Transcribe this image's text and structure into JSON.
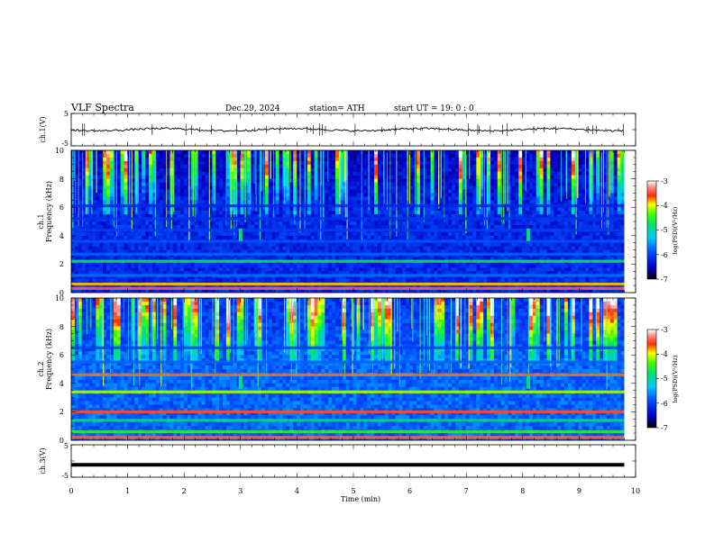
{
  "header": {
    "title": "VLF  Spectra",
    "date": "Dec.29, 2024",
    "station": "station= ATH",
    "start": "start  UT  =    19: 0  : 0"
  },
  "chart_data": {
    "type": "heatmap",
    "x_axis": {
      "label": "Time  (min)",
      "range": [
        0,
        10
      ],
      "ticks": [
        "0",
        "1",
        "2",
        "3",
        "4",
        "5",
        "6",
        "7",
        "8",
        "9",
        "10"
      ]
    },
    "panels": [
      {
        "kind": "line",
        "ylabel": "ch.1(V)",
        "ylim": [
          -5,
          5
        ],
        "yticks": [
          "5",
          "-5"
        ],
        "baseline_value": 0,
        "data_end_min": 9.8
      },
      {
        "kind": "spectrogram",
        "ylabel_channel": "ch.1",
        "ylabel": "Frequency  (kHz)",
        "ylim": [
          0,
          10
        ],
        "yticks": [
          "10",
          "8",
          "6",
          "4",
          "2",
          "0"
        ],
        "data_end_min": 9.8,
        "features": [
          {
            "type": "band",
            "freq_khz": 2.2,
            "level": 0.58
          },
          {
            "type": "band",
            "freq_khz": 1.2,
            "level": 0.32
          },
          {
            "type": "band",
            "freq_khz": 0.6,
            "level": 0.78
          },
          {
            "type": "band",
            "freq_khz": 0.3,
            "level": 0.9
          },
          {
            "type": "band",
            "freq_khz": 3.6,
            "level": 0.28
          },
          {
            "type": "band",
            "freq_khz": 4.4,
            "level": 0.24
          },
          {
            "type": "band",
            "freq_khz": 5.2,
            "level": 0.22
          },
          {
            "type": "band",
            "freq_khz": 6.1,
            "level": 0.2
          },
          {
            "type": "band",
            "freq_khz": 2.7,
            "level": 0.3
          },
          {
            "type": "burst",
            "time_min": 3.0,
            "freq_khz": 4.0
          },
          {
            "type": "burst",
            "time_min": 8.1,
            "freq_khz": 4.0
          }
        ]
      },
      {
        "kind": "spectrogram",
        "ylabel_channel": "ch.2",
        "ylabel": "Frequency  (kHz)",
        "ylim": [
          0,
          10
        ],
        "yticks": [
          "10",
          "8",
          "6",
          "4",
          "2",
          "0"
        ],
        "data_end_min": 9.8,
        "features": [
          {
            "type": "band",
            "freq_khz": 4.6,
            "level": 0.82
          },
          {
            "type": "band",
            "freq_khz": 3.4,
            "level": 0.72
          },
          {
            "type": "band",
            "freq_khz": 2.0,
            "level": 0.88
          },
          {
            "type": "band",
            "freq_khz": 1.4,
            "level": 0.55
          },
          {
            "type": "band",
            "freq_khz": 0.6,
            "level": 0.62
          },
          {
            "type": "band",
            "freq_khz": 0.2,
            "level": 0.9
          },
          {
            "type": "band",
            "freq_khz": 5.5,
            "level": 0.3
          },
          {
            "type": "band",
            "freq_khz": 6.5,
            "level": 0.25
          },
          {
            "type": "burst",
            "time_min": 3.0,
            "freq_khz": 4.0
          },
          {
            "type": "burst",
            "time_min": 8.1,
            "freq_khz": 4.0
          }
        ]
      },
      {
        "kind": "line",
        "ylabel": "ch.3(V)",
        "ylim": [
          -5,
          5
        ],
        "yticks": [
          "5",
          "-5"
        ],
        "baseline_value": -1.2,
        "data_end_min": 9.8
      }
    ],
    "colorbars": [
      {
        "label": "log(PSD)(V²/Hz)",
        "range": [
          -7,
          -3
        ],
        "ticks": [
          "-3",
          "-4",
          "-5",
          "-6",
          "-7"
        ]
      },
      {
        "label": "log(PSD)(V²/Hz)",
        "range": [
          -7,
          -3
        ],
        "ticks": [
          "-3",
          "-4",
          "-5",
          "-6",
          "-7"
        ]
      }
    ]
  }
}
